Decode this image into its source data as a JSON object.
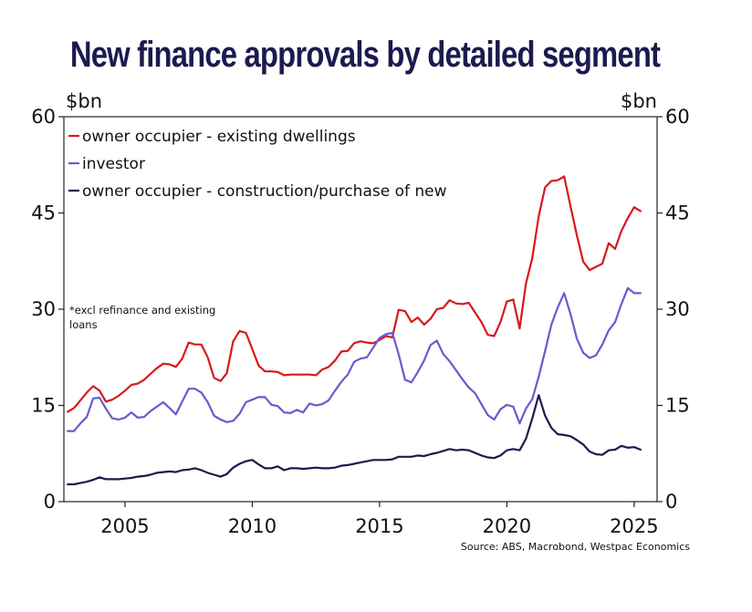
{
  "chart_data": {
    "type": "line",
    "title": "New finance approvals by detailed segment",
    "y_unit_left": "$bn",
    "y_unit_right": "$bn",
    "ylim": [
      0,
      60
    ],
    "yticks": [
      0,
      15,
      30,
      45,
      60
    ],
    "xlim": [
      2002.6,
      2025.9
    ],
    "xticks": [
      2005,
      2010,
      2015,
      2020,
      2025
    ],
    "grid": false,
    "legend_position": "top-left",
    "note": [
      "*excl refinance and existing",
      "loans"
    ],
    "source": "Source: ABS, Macrobond, Westpac Economics",
    "series": [
      {
        "name": "owner occupier - existing dwellings",
        "color": "#d7191c",
        "points": [
          [
            2002.75,
            14.0
          ],
          [
            2003.0,
            14.6
          ],
          [
            2003.25,
            15.8
          ],
          [
            2003.5,
            17.0
          ],
          [
            2003.75,
            18.0
          ],
          [
            2004.0,
            17.3
          ],
          [
            2004.25,
            15.6
          ],
          [
            2004.5,
            15.9
          ],
          [
            2004.75,
            16.5
          ],
          [
            2005.0,
            17.3
          ],
          [
            2005.25,
            18.2
          ],
          [
            2005.5,
            18.4
          ],
          [
            2005.75,
            19.0
          ],
          [
            2006.0,
            19.9
          ],
          [
            2006.25,
            20.8
          ],
          [
            2006.5,
            21.5
          ],
          [
            2006.75,
            21.4
          ],
          [
            2007.0,
            21.0
          ],
          [
            2007.25,
            22.3
          ],
          [
            2007.5,
            24.8
          ],
          [
            2007.75,
            24.5
          ],
          [
            2008.0,
            24.5
          ],
          [
            2008.25,
            22.5
          ],
          [
            2008.5,
            19.3
          ],
          [
            2008.75,
            18.8
          ],
          [
            2009.0,
            20.0
          ],
          [
            2009.25,
            25.0
          ],
          [
            2009.5,
            26.6
          ],
          [
            2009.75,
            26.3
          ],
          [
            2010.0,
            23.8
          ],
          [
            2010.25,
            21.2
          ],
          [
            2010.5,
            20.3
          ],
          [
            2010.75,
            20.3
          ],
          [
            2011.0,
            20.2
          ],
          [
            2011.25,
            19.7
          ],
          [
            2011.5,
            19.8
          ],
          [
            2011.75,
            19.8
          ],
          [
            2012.0,
            19.8
          ],
          [
            2012.25,
            19.8
          ],
          [
            2012.5,
            19.7
          ],
          [
            2012.75,
            20.6
          ],
          [
            2013.0,
            21.0
          ],
          [
            2013.25,
            22.0
          ],
          [
            2013.5,
            23.4
          ],
          [
            2013.75,
            23.5
          ],
          [
            2014.0,
            24.7
          ],
          [
            2014.25,
            25.0
          ],
          [
            2014.5,
            24.8
          ],
          [
            2014.75,
            24.7
          ],
          [
            2015.0,
            25.2
          ],
          [
            2015.25,
            25.8
          ],
          [
            2015.5,
            25.6
          ],
          [
            2015.75,
            29.9
          ],
          [
            2016.0,
            29.7
          ],
          [
            2016.25,
            28.0
          ],
          [
            2016.5,
            28.7
          ],
          [
            2016.75,
            27.6
          ],
          [
            2017.0,
            28.5
          ],
          [
            2017.25,
            30.0
          ],
          [
            2017.5,
            30.2
          ],
          [
            2017.75,
            31.4
          ],
          [
            2018.0,
            30.9
          ],
          [
            2018.25,
            30.8
          ],
          [
            2018.5,
            31.0
          ],
          [
            2018.75,
            29.5
          ],
          [
            2019.0,
            28.0
          ],
          [
            2019.25,
            26.0
          ],
          [
            2019.5,
            25.8
          ],
          [
            2019.75,
            28.0
          ],
          [
            2020.0,
            31.2
          ],
          [
            2020.25,
            31.5
          ],
          [
            2020.5,
            27.0
          ],
          [
            2020.75,
            34.0
          ],
          [
            2021.0,
            38.0
          ],
          [
            2021.25,
            44.5
          ],
          [
            2021.5,
            49.0
          ],
          [
            2021.75,
            50.0
          ],
          [
            2022.0,
            50.1
          ],
          [
            2022.25,
            50.7
          ],
          [
            2022.5,
            46.0
          ],
          [
            2022.75,
            41.5
          ],
          [
            2023.0,
            37.4
          ],
          [
            2023.25,
            36.1
          ],
          [
            2023.5,
            36.6
          ],
          [
            2023.75,
            37.1
          ],
          [
            2024.0,
            40.3
          ],
          [
            2024.25,
            39.4
          ],
          [
            2024.5,
            42.2
          ],
          [
            2024.75,
            44.2
          ],
          [
            2025.0,
            45.9
          ],
          [
            2025.25,
            45.3
          ]
        ]
      },
      {
        "name": "investor",
        "color": "#6a5acd",
        "points": [
          [
            2002.75,
            11.0
          ],
          [
            2003.0,
            11.0
          ],
          [
            2003.25,
            12.2
          ],
          [
            2003.5,
            13.2
          ],
          [
            2003.75,
            16.1
          ],
          [
            2004.0,
            16.2
          ],
          [
            2004.25,
            14.5
          ],
          [
            2004.5,
            13.0
          ],
          [
            2004.75,
            12.8
          ],
          [
            2005.0,
            13.1
          ],
          [
            2005.25,
            13.9
          ],
          [
            2005.5,
            13.1
          ],
          [
            2005.75,
            13.2
          ],
          [
            2006.0,
            14.1
          ],
          [
            2006.25,
            14.8
          ],
          [
            2006.5,
            15.5
          ],
          [
            2006.75,
            14.6
          ],
          [
            2007.0,
            13.6
          ],
          [
            2007.25,
            15.6
          ],
          [
            2007.5,
            17.6
          ],
          [
            2007.75,
            17.6
          ],
          [
            2008.0,
            17.0
          ],
          [
            2008.25,
            15.5
          ],
          [
            2008.5,
            13.4
          ],
          [
            2008.75,
            12.8
          ],
          [
            2009.0,
            12.4
          ],
          [
            2009.25,
            12.6
          ],
          [
            2009.5,
            13.7
          ],
          [
            2009.75,
            15.5
          ],
          [
            2010.0,
            15.9
          ],
          [
            2010.25,
            16.3
          ],
          [
            2010.5,
            16.3
          ],
          [
            2010.75,
            15.1
          ],
          [
            2011.0,
            14.9
          ],
          [
            2011.25,
            13.9
          ],
          [
            2011.5,
            13.8
          ],
          [
            2011.75,
            14.3
          ],
          [
            2012.0,
            13.9
          ],
          [
            2012.25,
            15.3
          ],
          [
            2012.5,
            15.0
          ],
          [
            2012.75,
            15.2
          ],
          [
            2013.0,
            15.8
          ],
          [
            2013.25,
            17.3
          ],
          [
            2013.5,
            18.7
          ],
          [
            2013.75,
            19.8
          ],
          [
            2014.0,
            21.8
          ],
          [
            2014.25,
            22.3
          ],
          [
            2014.5,
            22.5
          ],
          [
            2014.75,
            24.0
          ],
          [
            2015.0,
            25.5
          ],
          [
            2015.25,
            26.1
          ],
          [
            2015.5,
            26.3
          ],
          [
            2015.75,
            23.0
          ],
          [
            2016.0,
            19.0
          ],
          [
            2016.25,
            18.6
          ],
          [
            2016.5,
            20.2
          ],
          [
            2016.75,
            22.0
          ],
          [
            2017.0,
            24.4
          ],
          [
            2017.25,
            25.1
          ],
          [
            2017.5,
            23.0
          ],
          [
            2017.75,
            21.9
          ],
          [
            2018.0,
            20.5
          ],
          [
            2018.25,
            19.1
          ],
          [
            2018.5,
            17.8
          ],
          [
            2018.75,
            16.9
          ],
          [
            2019.0,
            15.2
          ],
          [
            2019.25,
            13.5
          ],
          [
            2019.5,
            12.8
          ],
          [
            2019.75,
            14.4
          ],
          [
            2020.0,
            15.1
          ],
          [
            2020.25,
            14.8
          ],
          [
            2020.5,
            12.2
          ],
          [
            2020.75,
            14.5
          ],
          [
            2021.0,
            16.0
          ],
          [
            2021.25,
            19.5
          ],
          [
            2021.5,
            23.5
          ],
          [
            2021.75,
            27.6
          ],
          [
            2022.0,
            30.3
          ],
          [
            2022.25,
            32.5
          ],
          [
            2022.5,
            29.2
          ],
          [
            2022.75,
            25.4
          ],
          [
            2023.0,
            23.2
          ],
          [
            2023.25,
            22.4
          ],
          [
            2023.5,
            22.8
          ],
          [
            2023.75,
            24.5
          ],
          [
            2024.0,
            26.7
          ],
          [
            2024.25,
            28.0
          ],
          [
            2024.5,
            30.8
          ],
          [
            2024.75,
            33.3
          ],
          [
            2025.0,
            32.5
          ],
          [
            2025.25,
            32.5
          ]
        ]
      },
      {
        "name": "owner occupier - construction/purchase of new",
        "color": "#1c1a4e",
        "points": [
          [
            2002.75,
            2.7
          ],
          [
            2003.0,
            2.7
          ],
          [
            2003.25,
            2.9
          ],
          [
            2003.5,
            3.1
          ],
          [
            2003.75,
            3.4
          ],
          [
            2004.0,
            3.8
          ],
          [
            2004.25,
            3.5
          ],
          [
            2004.5,
            3.5
          ],
          [
            2004.75,
            3.5
          ],
          [
            2005.0,
            3.6
          ],
          [
            2005.25,
            3.7
          ],
          [
            2005.5,
            3.9
          ],
          [
            2005.75,
            4.0
          ],
          [
            2006.0,
            4.2
          ],
          [
            2006.25,
            4.5
          ],
          [
            2006.5,
            4.6
          ],
          [
            2006.75,
            4.7
          ],
          [
            2007.0,
            4.6
          ],
          [
            2007.25,
            4.9
          ],
          [
            2007.5,
            5.0
          ],
          [
            2007.75,
            5.2
          ],
          [
            2008.0,
            4.9
          ],
          [
            2008.25,
            4.5
          ],
          [
            2008.5,
            4.2
          ],
          [
            2008.75,
            3.9
          ],
          [
            2009.0,
            4.3
          ],
          [
            2009.25,
            5.3
          ],
          [
            2009.5,
            5.9
          ],
          [
            2009.75,
            6.3
          ],
          [
            2010.0,
            6.5
          ],
          [
            2010.25,
            5.8
          ],
          [
            2010.5,
            5.2
          ],
          [
            2010.75,
            5.2
          ],
          [
            2011.0,
            5.5
          ],
          [
            2011.25,
            4.9
          ],
          [
            2011.5,
            5.2
          ],
          [
            2011.75,
            5.2
          ],
          [
            2012.0,
            5.1
          ],
          [
            2012.25,
            5.2
          ],
          [
            2012.5,
            5.3
          ],
          [
            2012.75,
            5.2
          ],
          [
            2013.0,
            5.2
          ],
          [
            2013.25,
            5.3
          ],
          [
            2013.5,
            5.6
          ],
          [
            2013.75,
            5.7
          ],
          [
            2014.0,
            5.9
          ],
          [
            2014.25,
            6.1
          ],
          [
            2014.5,
            6.3
          ],
          [
            2014.75,
            6.5
          ],
          [
            2015.0,
            6.5
          ],
          [
            2015.25,
            6.5
          ],
          [
            2015.5,
            6.6
          ],
          [
            2015.75,
            7.0
          ],
          [
            2016.0,
            7.0
          ],
          [
            2016.25,
            7.0
          ],
          [
            2016.5,
            7.2
          ],
          [
            2016.75,
            7.1
          ],
          [
            2017.0,
            7.4
          ],
          [
            2017.25,
            7.6
          ],
          [
            2017.5,
            7.9
          ],
          [
            2017.75,
            8.2
          ],
          [
            2018.0,
            8.0
          ],
          [
            2018.25,
            8.1
          ],
          [
            2018.5,
            8.0
          ],
          [
            2018.75,
            7.6
          ],
          [
            2019.0,
            7.2
          ],
          [
            2019.25,
            6.9
          ],
          [
            2019.5,
            6.8
          ],
          [
            2019.75,
            7.2
          ],
          [
            2020.0,
            8.0
          ],
          [
            2020.25,
            8.2
          ],
          [
            2020.5,
            8.0
          ],
          [
            2020.75,
            9.8
          ],
          [
            2021.0,
            13.0
          ],
          [
            2021.25,
            16.6
          ],
          [
            2021.5,
            13.4
          ],
          [
            2021.75,
            11.5
          ],
          [
            2022.0,
            10.5
          ],
          [
            2022.25,
            10.4
          ],
          [
            2022.5,
            10.2
          ],
          [
            2022.75,
            9.6
          ],
          [
            2023.0,
            8.9
          ],
          [
            2023.25,
            7.8
          ],
          [
            2023.5,
            7.4
          ],
          [
            2023.75,
            7.3
          ],
          [
            2024.0,
            8.0
          ],
          [
            2024.25,
            8.1
          ],
          [
            2024.5,
            8.7
          ],
          [
            2024.75,
            8.4
          ],
          [
            2025.0,
            8.5
          ],
          [
            2025.25,
            8.1
          ]
        ]
      }
    ]
  }
}
